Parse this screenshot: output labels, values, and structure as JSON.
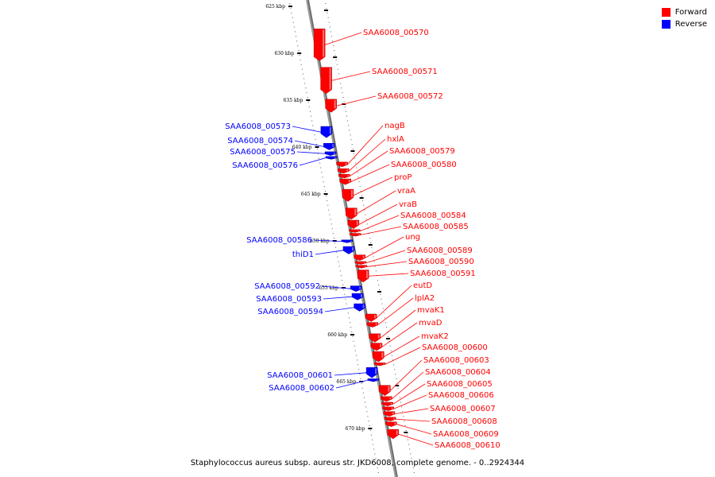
{
  "legend": {
    "forward_label": "Forward",
    "reverse_label": "Reverse",
    "forward_color": "#ff0000",
    "reverse_color": "#0000ff"
  },
  "caption": "Staphylococcus aureus subsp. aureus str. JKD6008, complete genome. - 0..2924344",
  "axis": {
    "unit": "kbp",
    "ticks": [
      {
        "kbp": 625,
        "label": "625 kbp"
      },
      {
        "kbp": 630,
        "label": "630 kbp"
      },
      {
        "kbp": 635,
        "label": "635 kbp"
      },
      {
        "kbp": 640,
        "label": "640 kbp"
      },
      {
        "kbp": 645,
        "label": "645 kbp"
      },
      {
        "kbp": 650,
        "label": "650 kbp"
      },
      {
        "kbp": 655,
        "label": "655 kbp"
      },
      {
        "kbp": 660,
        "label": "660 kbp"
      },
      {
        "kbp": 665,
        "label": "665 kbp"
      },
      {
        "kbp": 670,
        "label": "670 kbp"
      }
    ]
  },
  "genes": [
    {
      "name": "SAA6008_00570",
      "strand": "forward",
      "start_kbp": 627.4,
      "end_kbp": 630.8
    },
    {
      "name": "SAA6008_00571",
      "strand": "forward",
      "start_kbp": 631.5,
      "end_kbp": 634.3
    },
    {
      "name": "SAA6008_00572",
      "strand": "forward",
      "start_kbp": 634.9,
      "end_kbp": 636.3
    },
    {
      "name": "SAA6008_00573",
      "strand": "reverse",
      "start_kbp": 637.8,
      "end_kbp": 639.0
    },
    {
      "name": "SAA6008_00574",
      "strand": "reverse",
      "start_kbp": 639.6,
      "end_kbp": 640.3
    },
    {
      "name": "SAA6008_00575",
      "strand": "reverse",
      "start_kbp": 640.5,
      "end_kbp": 640.9
    },
    {
      "name": "SAA6008_00576",
      "strand": "reverse",
      "start_kbp": 641.0,
      "end_kbp": 641.3
    },
    {
      "name": "nagB",
      "strand": "forward",
      "start_kbp": 641.6,
      "end_kbp": 642.1
    },
    {
      "name": "hxlA",
      "strand": "forward",
      "start_kbp": 642.3,
      "end_kbp": 642.8
    },
    {
      "name": "SAA6008_00579",
      "strand": "forward",
      "start_kbp": 642.9,
      "end_kbp": 643.3
    },
    {
      "name": "SAA6008_00580",
      "strand": "forward",
      "start_kbp": 643.4,
      "end_kbp": 644.0
    },
    {
      "name": "proP",
      "strand": "forward",
      "start_kbp": 644.5,
      "end_kbp": 645.8
    },
    {
      "name": "vraA",
      "strand": "forward",
      "start_kbp": 646.5,
      "end_kbp": 647.7
    },
    {
      "name": "vraB",
      "strand": "forward",
      "start_kbp": 647.8,
      "end_kbp": 648.7
    },
    {
      "name": "SAA6008_00584",
      "strand": "forward",
      "start_kbp": 648.8,
      "end_kbp": 649.1
    },
    {
      "name": "SAA6008_00585",
      "strand": "forward",
      "start_kbp": 649.2,
      "end_kbp": 649.5
    },
    {
      "name": "SAA6008_00586",
      "strand": "reverse",
      "start_kbp": 649.9,
      "end_kbp": 650.2
    },
    {
      "name": "thiD1",
      "strand": "reverse",
      "start_kbp": 650.6,
      "end_kbp": 651.4
    },
    {
      "name": "ung",
      "strand": "forward",
      "start_kbp": 651.5,
      "end_kbp": 652.1
    },
    {
      "name": "SAA6008_00589",
      "strand": "forward",
      "start_kbp": 652.2,
      "end_kbp": 652.5
    },
    {
      "name": "SAA6008_00590",
      "strand": "forward",
      "start_kbp": 652.6,
      "end_kbp": 652.9
    },
    {
      "name": "SAA6008_00591",
      "strand": "forward",
      "start_kbp": 653.1,
      "end_kbp": 654.4
    },
    {
      "name": "SAA6008_00592",
      "strand": "reverse",
      "start_kbp": 654.8,
      "end_kbp": 655.4
    },
    {
      "name": "SAA6008_00593",
      "strand": "reverse",
      "start_kbp": 655.6,
      "end_kbp": 656.3
    },
    {
      "name": "SAA6008_00594",
      "strand": "reverse",
      "start_kbp": 656.7,
      "end_kbp": 657.5
    },
    {
      "name": "eutD",
      "strand": "forward",
      "start_kbp": 657.8,
      "end_kbp": 658.6
    },
    {
      "name": "lplA2",
      "strand": "forward",
      "start_kbp": 658.7,
      "end_kbp": 659.2
    },
    {
      "name": "mvaK1",
      "strand": "forward",
      "start_kbp": 659.9,
      "end_kbp": 660.8
    },
    {
      "name": "mvaD",
      "strand": "forward",
      "start_kbp": 660.9,
      "end_kbp": 661.7
    },
    {
      "name": "mvaK2",
      "strand": "forward",
      "start_kbp": 661.8,
      "end_kbp": 662.9
    },
    {
      "name": "SAA6008_00600",
      "strand": "forward",
      "start_kbp": 663.0,
      "end_kbp": 663.3
    },
    {
      "name": "SAA6008_00601",
      "strand": "reverse",
      "start_kbp": 663.5,
      "end_kbp": 664.6
    },
    {
      "name": "SAA6008_00602",
      "strand": "reverse",
      "start_kbp": 664.7,
      "end_kbp": 665.0
    },
    {
      "name": "SAA6008_00603",
      "strand": "forward",
      "start_kbp": 665.4,
      "end_kbp": 666.5
    },
    {
      "name": "SAA6008_00604",
      "strand": "forward",
      "start_kbp": 666.6,
      "end_kbp": 667.1
    },
    {
      "name": "SAA6008_00605",
      "strand": "forward",
      "start_kbp": 667.2,
      "end_kbp": 667.6
    },
    {
      "name": "SAA6008_00606",
      "strand": "forward",
      "start_kbp": 667.7,
      "end_kbp": 668.1
    },
    {
      "name": "SAA6008_00607",
      "strand": "forward",
      "start_kbp": 668.2,
      "end_kbp": 668.7
    },
    {
      "name": "SAA6008_00608",
      "strand": "forward",
      "start_kbp": 668.8,
      "end_kbp": 669.2
    },
    {
      "name": "SAA6008_00609",
      "strand": "forward",
      "start_kbp": 669.3,
      "end_kbp": 669.8
    },
    {
      "name": "SAA6008_00610",
      "strand": "forward",
      "start_kbp": 670.1,
      "end_kbp": 671.1
    }
  ]
}
